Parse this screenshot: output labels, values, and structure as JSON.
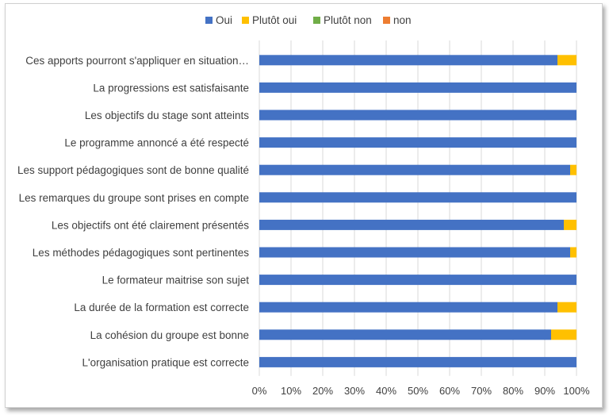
{
  "chart_data": {
    "type": "bar",
    "orientation": "horizontal",
    "stacked": "percent",
    "categories": [
      "Ces apports pourront s'appliquer en situation…",
      "La progressions est satisfaisante",
      "Les objectifs du stage sont atteints",
      "Le programme annoncé a été respecté",
      "Les support pédagogiques sont de bonne qualité",
      "Les remarques du groupe sont prises en compte",
      "Les objectifs ont été clairement présentés",
      "Les méthodes pédagogiques sont pertinentes",
      "Le formateur maitrise son sujet",
      "La durée de la formation est correcte",
      "La cohésion du groupe est bonne",
      "L'organisation pratique est correcte"
    ],
    "series": [
      {
        "name": "Oui",
        "color": "#4472C4",
        "values": [
          94,
          100,
          100,
          100,
          98,
          100,
          96,
          98,
          100,
          94,
          92,
          100
        ]
      },
      {
        "name": "Plutôt oui",
        "color": "#FFC000",
        "values": [
          6,
          0,
          0,
          0,
          2,
          0,
          4,
          2,
          0,
          6,
          8,
          0
        ]
      },
      {
        "name": "Plutôt non",
        "color": "#70AD47",
        "values": [
          0,
          0,
          0,
          0,
          0,
          0,
          0,
          0,
          0,
          0,
          0,
          0
        ]
      },
      {
        "name": "non",
        "color": "#ED7D31",
        "values": [
          0,
          0,
          0,
          0,
          0,
          0,
          0,
          0,
          0,
          0,
          0,
          0
        ]
      }
    ],
    "x_ticks": [
      "0%",
      "10%",
      "20%",
      "30%",
      "40%",
      "50%",
      "60%",
      "70%",
      "80%",
      "90%",
      "100%"
    ],
    "xlim": [
      0,
      100
    ],
    "grid": "vertical",
    "legend_position": "top",
    "title": "",
    "xlabel": "",
    "ylabel": ""
  }
}
